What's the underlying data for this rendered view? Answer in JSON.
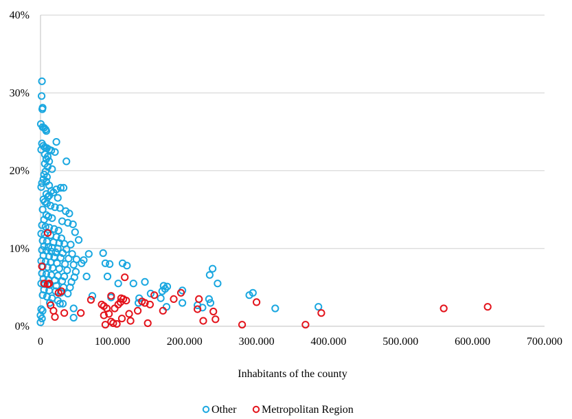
{
  "chart_data": {
    "type": "scatter",
    "title": "",
    "xlabel": "Inhabitants of the county",
    "ylabel": "",
    "xlim": [
      0,
      700000
    ],
    "ylim": [
      0,
      0.4
    ],
    "x_ticks": [
      0,
      100000,
      200000,
      300000,
      400000,
      500000,
      600000,
      700000
    ],
    "x_tick_labels": [
      "0",
      "100.000",
      "200.000",
      "300.000",
      "400.000",
      "500.000",
      "600.000",
      "700.000"
    ],
    "y_ticks": [
      0,
      0.1,
      0.2,
      0.3,
      0.4
    ],
    "y_tick_labels": [
      "0%",
      "10%",
      "20%",
      "30%",
      "40%"
    ],
    "grid": "horizontal",
    "legend": "bottom-center",
    "series": [
      {
        "name": "Other",
        "color": "#1aa7e0",
        "points": [
          [
            2000,
            0.315
          ],
          [
            1500,
            0.296
          ],
          [
            3000,
            0.281
          ],
          [
            2500,
            0.279
          ],
          [
            500,
            0.26
          ],
          [
            3000,
            0.256
          ],
          [
            5000,
            0.255
          ],
          [
            7000,
            0.253
          ],
          [
            8000,
            0.251
          ],
          [
            22000,
            0.237
          ],
          [
            2000,
            0.235
          ],
          [
            4000,
            0.232
          ],
          [
            6000,
            0.23
          ],
          [
            9000,
            0.229
          ],
          [
            12000,
            0.227
          ],
          [
            1000,
            0.227
          ],
          [
            15000,
            0.226
          ],
          [
            20000,
            0.224
          ],
          [
            6000,
            0.221
          ],
          [
            10000,
            0.218
          ],
          [
            8000,
            0.215
          ],
          [
            12000,
            0.212
          ],
          [
            36000,
            0.212
          ],
          [
            6000,
            0.209
          ],
          [
            10000,
            0.205
          ],
          [
            16000,
            0.202
          ],
          [
            7000,
            0.199
          ],
          [
            5000,
            0.195
          ],
          [
            9000,
            0.192
          ],
          [
            4000,
            0.189
          ],
          [
            8000,
            0.186
          ],
          [
            2000,
            0.184
          ],
          [
            12000,
            0.181
          ],
          [
            28000,
            0.178
          ],
          [
            32000,
            0.178
          ],
          [
            1000,
            0.179
          ],
          [
            22000,
            0.176
          ],
          [
            15000,
            0.174
          ],
          [
            18000,
            0.172
          ],
          [
            8000,
            0.17
          ],
          [
            12000,
            0.168
          ],
          [
            10000,
            0.166
          ],
          [
            24000,
            0.165
          ],
          [
            4000,
            0.163
          ],
          [
            6000,
            0.16
          ],
          [
            9000,
            0.158
          ],
          [
            14000,
            0.155
          ],
          [
            20000,
            0.153
          ],
          [
            27000,
            0.152
          ],
          [
            3000,
            0.15
          ],
          [
            35000,
            0.148
          ],
          [
            40000,
            0.145
          ],
          [
            8000,
            0.143
          ],
          [
            11000,
            0.141
          ],
          [
            16000,
            0.139
          ],
          [
            5000,
            0.137
          ],
          [
            30000,
            0.135
          ],
          [
            38000,
            0.133
          ],
          [
            45000,
            0.131
          ],
          [
            2000,
            0.13
          ],
          [
            7000,
            0.128
          ],
          [
            12000,
            0.127
          ],
          [
            19000,
            0.125
          ],
          [
            25000,
            0.123
          ],
          [
            48000,
            0.121
          ],
          [
            1000,
            0.119
          ],
          [
            6000,
            0.118
          ],
          [
            14000,
            0.117
          ],
          [
            22000,
            0.115
          ],
          [
            29000,
            0.113
          ],
          [
            53000,
            0.111
          ],
          [
            3000,
            0.11
          ],
          [
            9000,
            0.109
          ],
          [
            18000,
            0.108
          ],
          [
            26000,
            0.107
          ],
          [
            33000,
            0.106
          ],
          [
            42000,
            0.105
          ],
          [
            5000,
            0.103
          ],
          [
            11000,
            0.102
          ],
          [
            16000,
            0.101
          ],
          [
            24000,
            0.1
          ],
          [
            36000,
            0.099
          ],
          [
            2000,
            0.098
          ],
          [
            8000,
            0.097
          ],
          [
            15000,
            0.096
          ],
          [
            21000,
            0.095
          ],
          [
            31000,
            0.094
          ],
          [
            44000,
            0.093
          ],
          [
            67000,
            0.093
          ],
          [
            87000,
            0.094
          ],
          [
            4000,
            0.091
          ],
          [
            12000,
            0.09
          ],
          [
            19000,
            0.089
          ],
          [
            28000,
            0.088
          ],
          [
            39000,
            0.087
          ],
          [
            50000,
            0.086
          ],
          [
            60000,
            0.085
          ],
          [
            1000,
            0.084
          ],
          [
            7000,
            0.083
          ],
          [
            14000,
            0.082
          ],
          [
            23000,
            0.081
          ],
          [
            34000,
            0.08
          ],
          [
            46000,
            0.079
          ],
          [
            57000,
            0.081
          ],
          [
            90000,
            0.081
          ],
          [
            96000,
            0.08
          ],
          [
            114000,
            0.081
          ],
          [
            120000,
            0.078
          ],
          [
            3000,
            0.077
          ],
          [
            10000,
            0.076
          ],
          [
            17000,
            0.075
          ],
          [
            26000,
            0.074
          ],
          [
            37000,
            0.072
          ],
          [
            49000,
            0.07
          ],
          [
            2000,
            0.068
          ],
          [
            8000,
            0.067
          ],
          [
            15000,
            0.066
          ],
          [
            24000,
            0.065
          ],
          [
            33000,
            0.064
          ],
          [
            47000,
            0.063
          ],
          [
            64000,
            0.064
          ],
          [
            93000,
            0.064
          ],
          [
            4000,
            0.061
          ],
          [
            11000,
            0.06
          ],
          [
            20000,
            0.059
          ],
          [
            30000,
            0.058
          ],
          [
            43000,
            0.057
          ],
          [
            1000,
            0.055
          ],
          [
            6000,
            0.054
          ],
          [
            13000,
            0.053
          ],
          [
            22000,
            0.052
          ],
          [
            32000,
            0.05
          ],
          [
            41000,
            0.05
          ],
          [
            108000,
            0.055
          ],
          [
            129000,
            0.055
          ],
          [
            145000,
            0.057
          ],
          [
            171000,
            0.052
          ],
          [
            176000,
            0.051
          ],
          [
            197000,
            0.046
          ],
          [
            246000,
            0.055
          ],
          [
            239000,
            0.074
          ],
          [
            235000,
            0.066
          ],
          [
            5000,
            0.047
          ],
          [
            12000,
            0.046
          ],
          [
            21000,
            0.045
          ],
          [
            28000,
            0.043
          ],
          [
            38000,
            0.042
          ],
          [
            153000,
            0.042
          ],
          [
            169000,
            0.045
          ],
          [
            173000,
            0.048
          ],
          [
            290000,
            0.04
          ],
          [
            295000,
            0.043
          ],
          [
            3000,
            0.04
          ],
          [
            9000,
            0.038
          ],
          [
            16000,
            0.036
          ],
          [
            24000,
            0.033
          ],
          [
            72000,
            0.039
          ],
          [
            98000,
            0.037
          ],
          [
            137000,
            0.036
          ],
          [
            167000,
            0.036
          ],
          [
            234000,
            0.035
          ],
          [
            13000,
            0.03
          ],
          [
            27000,
            0.029
          ],
          [
            31000,
            0.029
          ],
          [
            46000,
            0.023
          ],
          [
            136000,
            0.03
          ],
          [
            197000,
            0.03
          ],
          [
            218000,
            0.027
          ],
          [
            236000,
            0.03
          ],
          [
            326000,
            0.023
          ],
          [
            386000,
            0.025
          ],
          [
            1000,
            0.022
          ],
          [
            3000,
            0.02
          ],
          [
            175000,
            0.025
          ],
          [
            225000,
            0.024
          ],
          [
            0,
            0.014
          ],
          [
            2000,
            0.01
          ],
          [
            46000,
            0.011
          ],
          [
            0,
            0.005
          ]
        ]
      },
      {
        "name": "Metropolitan Region",
        "color": "#e3131b",
        "points": [
          [
            10000,
            0.12
          ],
          [
            2000,
            0.077
          ],
          [
            117000,
            0.063
          ],
          [
            5000,
            0.055
          ],
          [
            10000,
            0.054
          ],
          [
            12000,
            0.055
          ],
          [
            29000,
            0.045
          ],
          [
            25000,
            0.043
          ],
          [
            195000,
            0.043
          ],
          [
            158000,
            0.04
          ],
          [
            98000,
            0.039
          ],
          [
            112000,
            0.036
          ],
          [
            70000,
            0.034
          ],
          [
            88000,
            0.026
          ],
          [
            115000,
            0.035
          ],
          [
            119000,
            0.033
          ],
          [
            141000,
            0.032
          ],
          [
            145000,
            0.03
          ],
          [
            152000,
            0.028
          ],
          [
            185000,
            0.035
          ],
          [
            220000,
            0.035
          ],
          [
            300000,
            0.031
          ],
          [
            85000,
            0.028
          ],
          [
            92000,
            0.023
          ],
          [
            103000,
            0.023
          ],
          [
            108000,
            0.028
          ],
          [
            111000,
            0.031
          ],
          [
            135000,
            0.02
          ],
          [
            170000,
            0.02
          ],
          [
            218000,
            0.022
          ],
          [
            240000,
            0.019
          ],
          [
            560000,
            0.023
          ],
          [
            621000,
            0.025
          ],
          [
            14000,
            0.027
          ],
          [
            18000,
            0.02
          ],
          [
            33000,
            0.017
          ],
          [
            56000,
            0.017
          ],
          [
            88000,
            0.014
          ],
          [
            95000,
            0.016
          ],
          [
            123000,
            0.016
          ],
          [
            390000,
            0.017
          ],
          [
            20000,
            0.012
          ],
          [
            113000,
            0.01
          ],
          [
            98000,
            0.006
          ],
          [
            101000,
            0.004
          ],
          [
            106000,
            0.003
          ],
          [
            90000,
            0.002
          ],
          [
            125000,
            0.007
          ],
          [
            149000,
            0.004
          ],
          [
            226000,
            0.007
          ],
          [
            243000,
            0.009
          ],
          [
            280000,
            0.002
          ],
          [
            368000,
            0.002
          ]
        ]
      }
    ]
  }
}
